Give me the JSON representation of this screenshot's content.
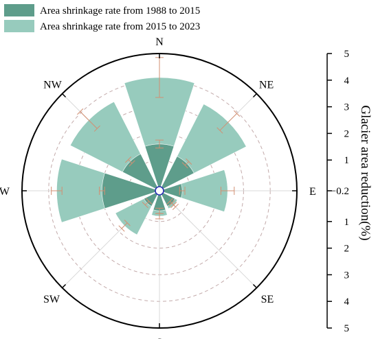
{
  "chart_data": {
    "type": "polar-bar",
    "directions": [
      "N",
      "NE",
      "E",
      "SE",
      "S",
      "SW",
      "W",
      "NW"
    ],
    "series": [
      {
        "name": "Area shrinkage rate from 1988 to 2015",
        "color": "#5e9d8b",
        "values": [
          1.6,
          1.3,
          0.7,
          0.5,
          0.6,
          0.5,
          2.0,
          1.4
        ],
        "errors": [
          0.15,
          0.1,
          0.1,
          0.1,
          0.1,
          0.1,
          0.1,
          0.1
        ]
      },
      {
        "name": "Area shrinkage rate from 2015 to 2023",
        "color": "#97cbbd",
        "values": [
          4.1,
          3.5,
          2.4,
          0.6,
          0.8,
          1.7,
          3.7,
          3.6
        ],
        "errors": [
          0.75,
          0.45,
          0.25,
          0.1,
          0.1,
          0.15,
          0.2,
          0.45
        ]
      }
    ],
    "center_value": -0.2,
    "radial_max": 5,
    "radial_ticks": [
      1,
      2,
      3,
      4,
      5
    ],
    "center_tick_label": "−0.2",
    "grid": true,
    "legend_position": "top-left",
    "axis_label": "Glacier area reduction(%)"
  }
}
